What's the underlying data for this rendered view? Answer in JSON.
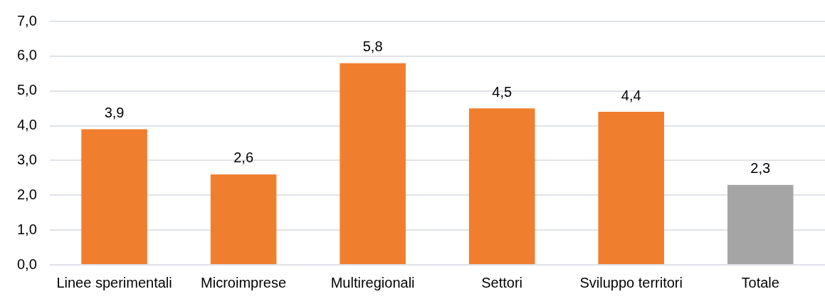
{
  "chart_data": {
    "type": "bar",
    "categories": [
      "Linee sperimentali",
      "Microimprese",
      "Multiregionali",
      "Settori",
      "Sviluppo territori",
      "Totale"
    ],
    "values": [
      3.9,
      2.6,
      5.8,
      4.5,
      4.4,
      2.3
    ],
    "colors": [
      "#f07e2f",
      "#f07e2f",
      "#f07e2f",
      "#f07e2f",
      "#f07e2f",
      "#a5a5a5"
    ],
    "value_labels": [
      "3,9",
      "2,6",
      "5,8",
      "4,5",
      "4,4",
      "2,3"
    ],
    "ylim": [
      0,
      7
    ],
    "yticks": [
      {
        "value": 0,
        "label": "0,0"
      },
      {
        "value": 1,
        "label": "1,0"
      },
      {
        "value": 2,
        "label": "2,0"
      },
      {
        "value": 3,
        "label": "3,0"
      },
      {
        "value": 4,
        "label": "4,0"
      },
      {
        "value": 5,
        "label": "5,0"
      },
      {
        "value": 6,
        "label": "6,0"
      },
      {
        "value": 7,
        "label": "7,0"
      }
    ],
    "grid": "y",
    "legend": false
  }
}
